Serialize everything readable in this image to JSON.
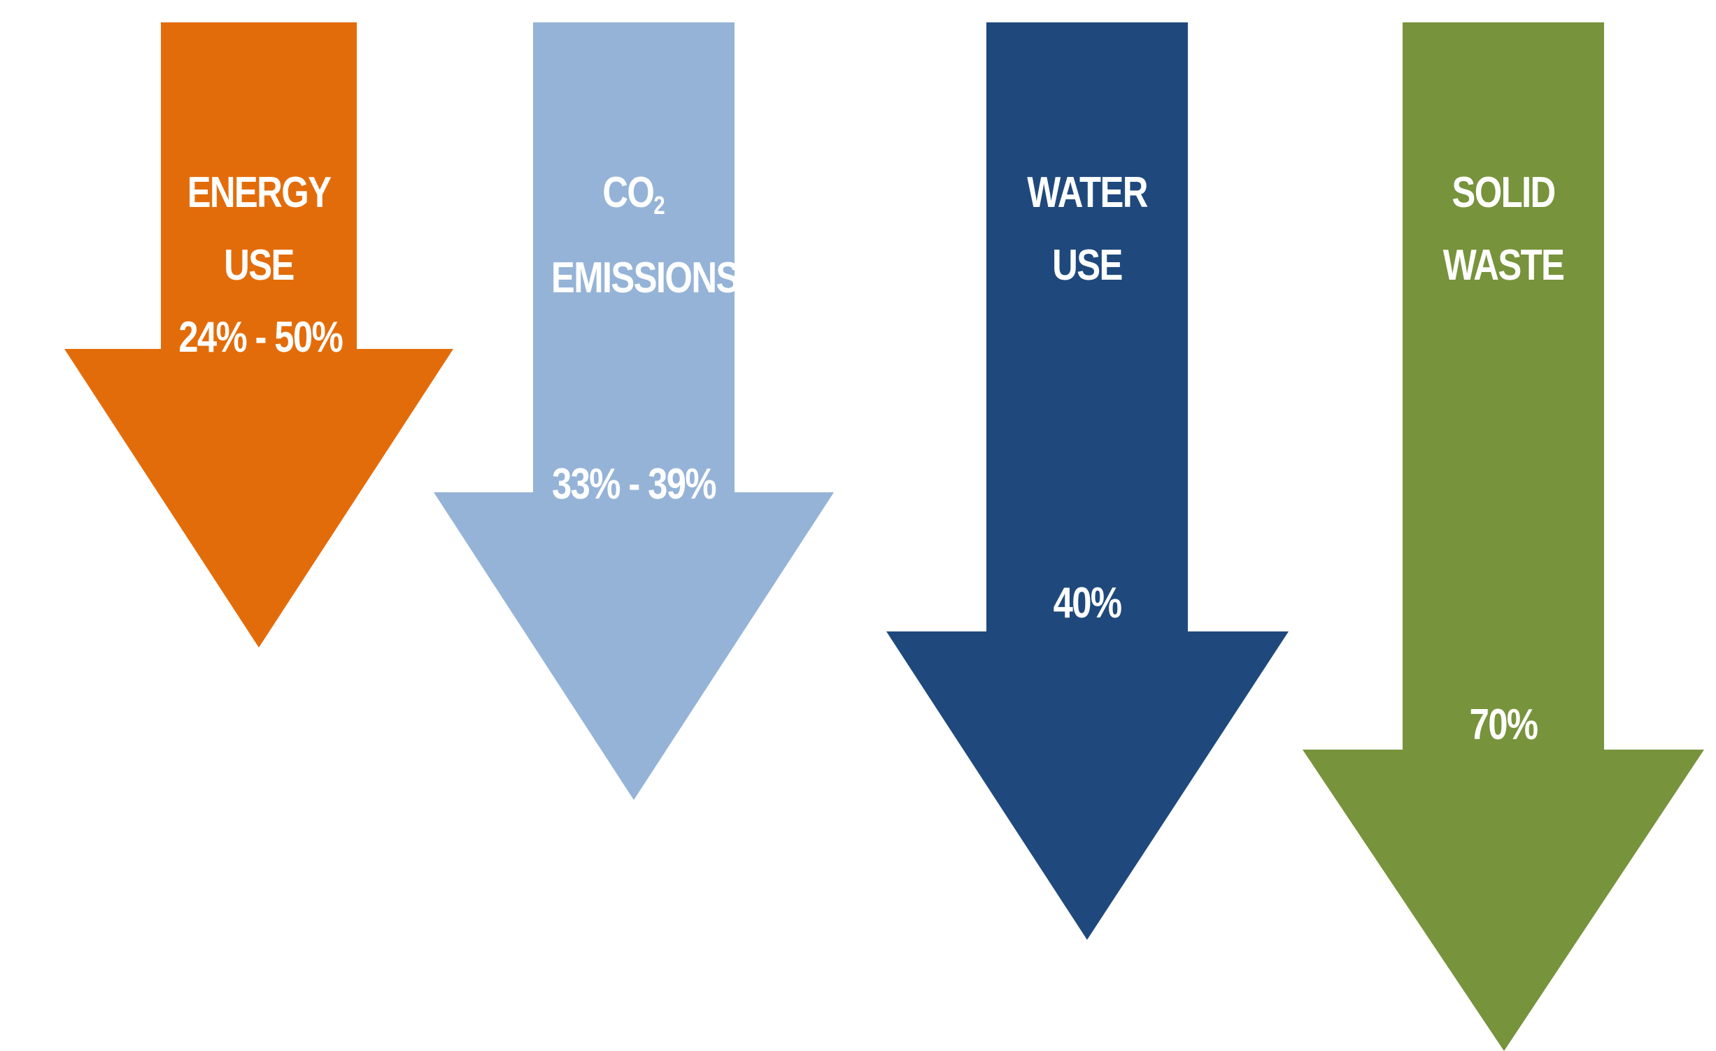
{
  "colors": {
    "energy": "#e36c0a",
    "co2": "#95b3d7",
    "water": "#1f497d",
    "waste": "#77933c",
    "text": "#ffffff",
    "background": "#ffffff"
  },
  "arrows": [
    {
      "key": "energy",
      "label_lines": [
        "ENERGY",
        "USE"
      ],
      "value": "24% - 50%"
    },
    {
      "key": "co2",
      "label_main": "CO",
      "label_sub": "2",
      "label_line2": "EMISSIONS",
      "value": "33% - 39%"
    },
    {
      "key": "water",
      "label_lines": [
        "WATER",
        "USE"
      ],
      "value": "40%"
    },
    {
      "key": "waste",
      "label_lines": [
        "SOLID",
        "WASTE"
      ],
      "value": "70%"
    }
  ]
}
